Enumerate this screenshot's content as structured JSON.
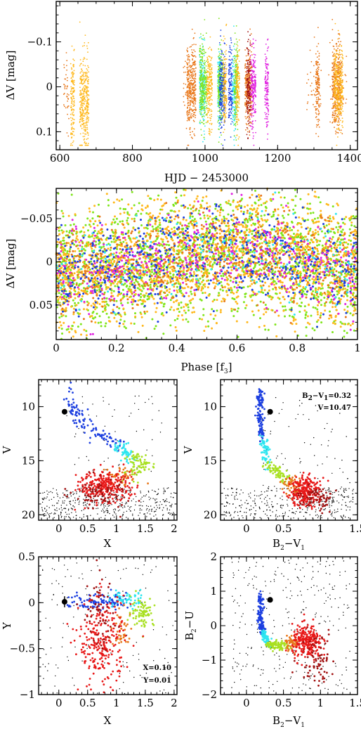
{
  "palette": {
    "orange_dark": "#e8771a",
    "yellow_orange": "#ffb81c",
    "green": "#7fe51a",
    "blue": "#1c3fe0",
    "cyan": "#2ee6f0",
    "magenta": "#e020e0",
    "red": "#e81818",
    "dark_red": "#a01010",
    "black": "#000000",
    "lime": "#a8e020"
  },
  "chart_data": [
    {
      "id": "lightcurve",
      "type": "scatter",
      "xlabel": "HJD − 2453000",
      "ylabel": "ΔV [mag]",
      "xlim": [
        590,
        1420
      ],
      "ylim": [
        0.14,
        -0.19
      ],
      "y_inverted": true,
      "xticks": [
        "600",
        "800",
        "1000",
        "1200",
        "1400"
      ],
      "yticks": [
        "−0.1",
        "0",
        "0.1"
      ],
      "series": [
        {
          "color": "yellow_orange",
          "segments": [
            [
              630,
              640
            ],
            [
              655,
              680
            ]
          ]
        },
        {
          "color": "orange_dark",
          "segments": [
            [
              950,
              975
            ],
            [
              1110,
              1130
            ],
            [
              1350,
              1375
            ],
            [
              1305,
              1315
            ]
          ]
        },
        {
          "color": "cyan",
          "segments": [
            [
              985,
              1000
            ],
            [
              1035,
              1045
            ],
            [
              1075,
              1085
            ]
          ]
        },
        {
          "color": "green",
          "segments": [
            [
              985,
              1005
            ],
            [
              1035,
              1050
            ],
            [
              1080,
              1090
            ]
          ]
        },
        {
          "color": "blue",
          "segments": [
            [
              1040,
              1055
            ],
            [
              1065,
              1075
            ]
          ]
        },
        {
          "color": "yellow_orange",
          "segments": [
            [
              1005,
              1020
            ],
            [
              1050,
              1060
            ],
            [
              1085,
              1095
            ],
            [
              1355,
              1380
            ]
          ]
        },
        {
          "color": "magenta",
          "segments": [
            [
              1125,
              1140
            ],
            [
              1165,
              1175
            ]
          ]
        },
        {
          "color": "dark_red",
          "segments": [
            [
              1115,
              1125
            ]
          ]
        }
      ]
    },
    {
      "id": "phased",
      "type": "scatter",
      "xlabel": "Phase [f3]",
      "ylabel": "ΔV [mag]",
      "xlim": [
        0,
        1
      ],
      "ylim": [
        0.09,
        -0.085
      ],
      "y_inverted": true,
      "xticks": [
        "0",
        "0.2",
        "0.4",
        "0.6",
        "0.8",
        "1"
      ],
      "yticks": [
        "−0.05",
        "0",
        "0.05"
      ],
      "series_colors": [
        "green",
        "yellow_orange",
        "orange_dark",
        "blue",
        "magenta",
        "cyan"
      ]
    },
    {
      "id": "cmd_v_x",
      "type": "scatter",
      "xlabel": "X",
      "ylabel": "V",
      "xlim": [
        -0.35,
        2.05
      ],
      "ylim": [
        20.5,
        7.5
      ],
      "y_inverted": true,
      "xticks": [
        "0",
        "0.5",
        "1",
        "1.5",
        "2"
      ],
      "yticks": [
        "10",
        "15",
        "20"
      ],
      "star_point": {
        "x": 0.1,
        "y": 10.47
      }
    },
    {
      "id": "cmd_v_b2v1",
      "type": "scatter",
      "xlabel": "B2−V1",
      "ylabel": "V",
      "xlim": [
        -0.35,
        1.5
      ],
      "ylim": [
        20.5,
        7.5
      ],
      "y_inverted": true,
      "xticks": [
        "0",
        "0.5",
        "1",
        "1.5"
      ],
      "yticks": [
        "10",
        "15",
        "20"
      ],
      "star_point": {
        "x": 0.32,
        "y": 10.47
      },
      "annotations": [
        "B2−V1=0.32",
        "V=10.47"
      ]
    },
    {
      "id": "cc_y_x",
      "type": "scatter",
      "xlabel": "X",
      "ylabel": "Y",
      "xlim": [
        -0.35,
        2.05
      ],
      "ylim": [
        -1,
        0.5
      ],
      "xticks": [
        "0",
        "0.5",
        "1",
        "1.5",
        "2"
      ],
      "yticks": [
        "0.5",
        "0",
        "−0.5",
        "−1"
      ],
      "star_point": {
        "x": 0.1,
        "y": 0.01
      },
      "annotations": [
        "X=0.10",
        "Y=0.01"
      ]
    },
    {
      "id": "cc_b2u_b2v1",
      "type": "scatter",
      "xlabel": "B2−V1",
      "ylabel": "B2−U",
      "xlim": [
        -0.35,
        1.5
      ],
      "ylim": [
        -2,
        2
      ],
      "xticks": [
        "0",
        "0.5",
        "1",
        "1.5"
      ],
      "yticks": [
        "2",
        "1",
        "0",
        "−1",
        "−2"
      ],
      "star_point": {
        "x": 0.32,
        "y": 0.75
      }
    }
  ]
}
